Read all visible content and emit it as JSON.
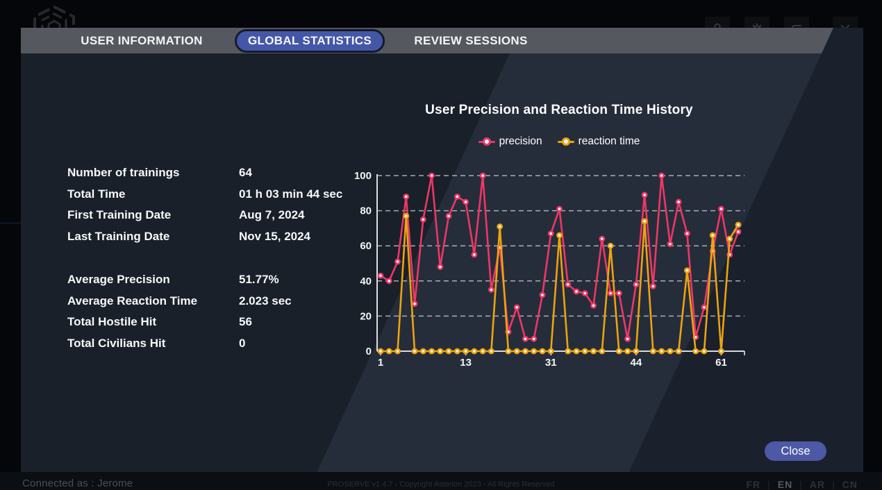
{
  "tabs": [
    {
      "label": "USER INFORMATION",
      "selected": false
    },
    {
      "label": "GLOBAL STATISTICS",
      "selected": true
    },
    {
      "label": "REVIEW SESSIONS",
      "selected": false
    }
  ],
  "stats": {
    "group1": [
      {
        "label": "Number of trainings",
        "value": "64"
      },
      {
        "label": "Total Time",
        "value": "01 h 03 min 44 sec"
      },
      {
        "label": "First Training Date",
        "value": "Aug 7, 2024"
      },
      {
        "label": "Last Training Date",
        "value": "Nov 15, 2024"
      }
    ],
    "group2": [
      {
        "label": "Average Precision",
        "value": "51.77%"
      },
      {
        "label": "Average Reaction Time",
        "value": "2.023 sec"
      },
      {
        "label": "Total Hostile Hit",
        "value": "56"
      },
      {
        "label": "Total Civilians Hit",
        "value": "0"
      }
    ]
  },
  "chart_data": {
    "type": "line",
    "title": "User Precision and Reaction Time History",
    "xlabel": "",
    "ylabel": "",
    "ylim": [
      0,
      100
    ],
    "y_ticks": [
      0,
      20,
      40,
      60,
      80,
      100
    ],
    "grid": "horizontal-dashed",
    "legend_position": "top",
    "x_tick_labels": [
      "1",
      "13",
      "31",
      "44",
      "61"
    ],
    "x_tick_indices": [
      0,
      10,
      20,
      30,
      40
    ],
    "series": [
      {
        "name": "precision",
        "color": "#ee3767",
        "values": [
          43,
          40,
          51,
          88,
          27,
          75,
          100,
          48,
          77,
          88,
          85,
          55,
          100,
          35,
          59,
          11,
          25,
          7,
          7,
          32,
          67,
          81,
          38,
          34,
          33,
          26,
          64,
          33,
          33,
          7,
          38,
          89,
          37,
          100,
          61,
          85,
          67,
          8,
          25,
          57,
          81,
          55,
          68
        ]
      },
      {
        "name": "reaction time",
        "color": "#eda40f",
        "values": [
          0,
          0,
          0,
          77,
          0,
          0,
          0,
          0,
          0,
          0,
          0,
          0,
          0,
          0,
          71,
          0,
          0,
          0,
          0,
          0,
          0,
          66,
          0,
          0,
          0,
          0,
          0,
          60,
          0,
          0,
          0,
          74,
          0,
          0,
          0,
          0,
          46,
          0,
          0,
          66,
          0,
          64,
          72
        ]
      }
    ]
  },
  "close_button": {
    "label": "Close"
  },
  "footer": {
    "connected": "Connected as : Jerome",
    "copyright": "PROSERVE v1.4.7 - Copyright Asterion 2023 - All Rights Reserved",
    "languages": [
      "FR",
      "EN",
      "AR",
      "CN"
    ],
    "active_language": "EN",
    "separator": "|"
  },
  "header_icons": [
    "user-icon",
    "gear-icon",
    "undo-icon",
    "close-icon"
  ],
  "colors": {
    "accent_tab": "#4457a7",
    "close_button": "#4d59a5",
    "precision_line": "#ee3767",
    "reaction_line": "#eda40f"
  }
}
